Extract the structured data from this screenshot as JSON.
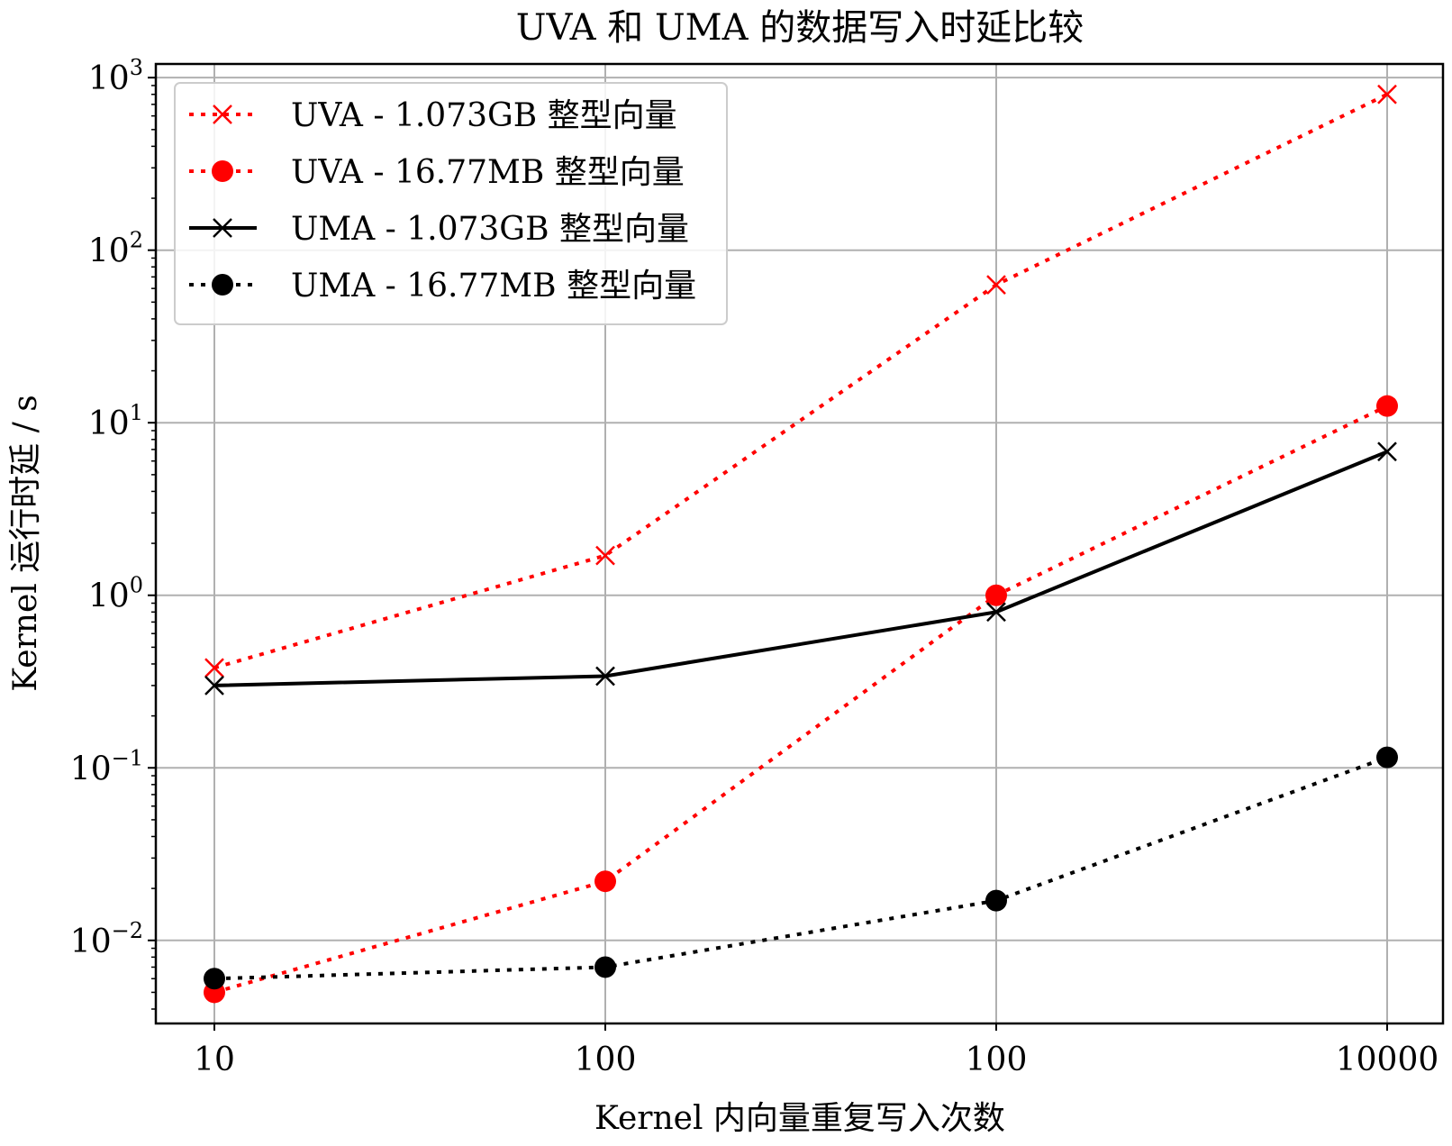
{
  "chart_data": {
    "type": "line",
    "title": "UVA 和 UMA 的数据写入时延比较",
    "xlabel": "Kernel 内向量重复写入次数",
    "ylabel": "Kernel 运行时延 / s",
    "y_scale": "log",
    "ylim": [
      0.0033,
      1200
    ],
    "categories": [
      "10",
      "100",
      "100",
      "10000"
    ],
    "y_ticks": [
      {
        "base": "10",
        "exp": "−2",
        "value": 0.01
      },
      {
        "base": "10",
        "exp": "−1",
        "value": 0.1
      },
      {
        "base": "10",
        "exp": "0",
        "value": 1
      },
      {
        "base": "10",
        "exp": "1",
        "value": 10
      },
      {
        "base": "10",
        "exp": "2",
        "value": 100
      },
      {
        "base": "10",
        "exp": "3",
        "value": 1000
      }
    ],
    "grid": true,
    "legend_position": "upper-left",
    "series": [
      {
        "name": "UVA - 1.073GB 整型向量",
        "values": [
          0.38,
          1.7,
          63,
          800
        ],
        "color": "#ff0000",
        "line": "dotted",
        "marker": "x"
      },
      {
        "name": "UVA - 16.77MB 整型向量",
        "values": [
          0.005,
          0.022,
          1.0,
          12.5
        ],
        "color": "#ff0000",
        "line": "dotted",
        "marker": "circle"
      },
      {
        "name": "UMA - 1.073GB 整型向量",
        "values": [
          0.3,
          0.34,
          0.8,
          6.8
        ],
        "color": "#000000",
        "line": "solid",
        "marker": "x"
      },
      {
        "name": "UMA - 16.77MB 整型向量",
        "values": [
          0.006,
          0.007,
          0.017,
          0.115
        ],
        "color": "#000000",
        "line": "dotted",
        "marker": "circle"
      }
    ]
  }
}
